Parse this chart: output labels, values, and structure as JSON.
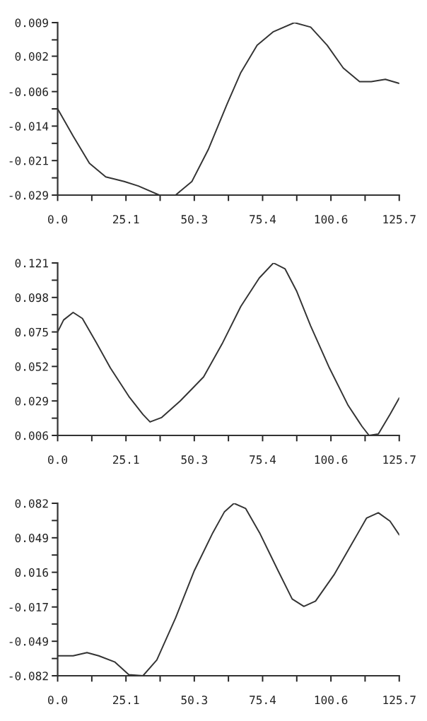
{
  "chart_data": [
    {
      "type": "line",
      "color": "#333333",
      "grid": false,
      "marker": "none",
      "line_style": "solid",
      "xlim": [
        0,
        125.7
      ],
      "ylim": [
        -0.029,
        0.009
      ],
      "xticks": [
        {
          "value": 0,
          "label": "0.0"
        },
        {
          "value": 12.57,
          "label": null
        },
        {
          "value": 25.14,
          "label": "25.1"
        },
        {
          "value": 37.71,
          "label": null
        },
        {
          "value": 50.28,
          "label": "50.3"
        },
        {
          "value": 62.85,
          "label": null
        },
        {
          "value": 75.42,
          "label": "75.4"
        },
        {
          "value": 87.99,
          "label": null
        },
        {
          "value": 100.56,
          "label": "100.6"
        },
        {
          "value": 113.13,
          "label": null
        },
        {
          "value": 125.7,
          "label": "125.7"
        }
      ],
      "yticks": [
        -0.029,
        {
          "value": -0.0252,
          "label": null
        },
        {
          "value": -0.0214,
          "label": "-0.021"
        },
        {
          "value": -0.0176,
          "label": null
        },
        {
          "value": -0.0138,
          "label": "-0.014"
        },
        {
          "value": -0.01,
          "label": null
        },
        {
          "value": -0.0062,
          "label": "-0.006"
        },
        {
          "value": -0.0024,
          "label": null
        },
        {
          "value": 0.0016,
          "label": "0.002"
        },
        {
          "value": 0.0052,
          "label": null
        },
        0.009
      ],
      "x": [
        0,
        5.7,
        11.7,
        17.7,
        24.5,
        29.7,
        37.4,
        43.4,
        49.4,
        55.4,
        62.3,
        67.4,
        73.4,
        79.4,
        87.1,
        93.1,
        99.2,
        105.1,
        111.1,
        115.4,
        120.6,
        125.7
      ],
      "values": [
        -0.01,
        -0.016,
        -0.022,
        -0.025,
        -0.026,
        -0.027,
        -0.029,
        -0.029,
        -0.026,
        -0.019,
        -0.009,
        -0.002,
        0.004,
        0.007,
        0.009,
        0.008,
        0.004,
        -0.001,
        -0.004,
        -0.004,
        -0.0035,
        -0.0044
      ]
    },
    {
      "type": "line",
      "color": "#333333",
      "grid": false,
      "marker": "none",
      "line_style": "solid",
      "xlim": [
        0,
        125.7
      ],
      "ylim": [
        0.006,
        0.121
      ],
      "xticks": [
        {
          "value": 0,
          "label": "0.0"
        },
        {
          "value": 12.57,
          "label": null
        },
        {
          "value": 25.14,
          "label": "25.1"
        },
        {
          "value": 37.71,
          "label": null
        },
        {
          "value": 50.28,
          "label": "50.3"
        },
        {
          "value": 62.85,
          "label": null
        },
        {
          "value": 75.42,
          "label": "75.4"
        },
        {
          "value": 87.99,
          "label": null
        },
        {
          "value": 100.56,
          "label": "100.6"
        },
        {
          "value": 113.13,
          "label": null
        },
        {
          "value": 125.7,
          "label": "125.7"
        }
      ],
      "yticks": [
        0.006,
        {
          "value": 0.0175,
          "label": null
        },
        0.029,
        {
          "value": 0.0405,
          "label": null
        },
        0.052,
        {
          "value": 0.0635,
          "label": null
        },
        0.075,
        {
          "value": 0.0865,
          "label": null
        },
        0.098,
        {
          "value": 0.1095,
          "label": null
        },
        0.121
      ],
      "x": [
        0,
        2.2,
        5.7,
        9.1,
        14.2,
        19.4,
        26.2,
        31.4,
        34.0,
        38.3,
        45.1,
        53.7,
        60.5,
        67.4,
        74.2,
        79.4,
        83.7,
        88.0,
        93.1,
        100.0,
        106.9,
        112.0,
        114.6,
        118.0,
        122.3,
        125.7
      ],
      "values": [
        0.075,
        0.083,
        0.088,
        0.084,
        0.068,
        0.051,
        0.032,
        0.02,
        0.015,
        0.018,
        0.029,
        0.045,
        0.067,
        0.092,
        0.111,
        0.121,
        0.117,
        0.102,
        0.079,
        0.051,
        0.026,
        0.012,
        0.006,
        0.007,
        0.02,
        0.031
      ]
    },
    {
      "type": "line",
      "color": "#333333",
      "grid": false,
      "marker": "none",
      "line_style": "solid",
      "xlim": [
        0,
        125.7
      ],
      "ylim": [
        -0.082,
        0.082
      ],
      "xticks": [
        {
          "value": 0,
          "label": "0.0"
        },
        {
          "value": 12.57,
          "label": null
        },
        {
          "value": 25.14,
          "label": "25.1"
        },
        {
          "value": 37.71,
          "label": null
        },
        {
          "value": 50.28,
          "label": "50.3"
        },
        {
          "value": 62.85,
          "label": null
        },
        {
          "value": 75.42,
          "label": "75.4"
        },
        {
          "value": 87.99,
          "label": null
        },
        {
          "value": 100.56,
          "label": "100.6"
        },
        {
          "value": 113.13,
          "label": null
        },
        {
          "value": 125.7,
          "label": "125.7"
        }
      ],
      "yticks": [
        -0.082,
        {
          "value": -0.0656,
          "label": null
        },
        {
          "value": -0.0492,
          "label": "-0.049"
        },
        {
          "value": -0.0328,
          "label": null
        },
        {
          "value": -0.0166,
          "label": "-0.017"
        },
        {
          "value": 0.0,
          "label": null
        },
        {
          "value": 0.0164,
          "label": "0.016"
        },
        {
          "value": 0.0328,
          "label": null
        },
        {
          "value": 0.0492,
          "label": "0.049"
        },
        {
          "value": 0.0656,
          "label": null
        },
        0.082
      ],
      "x": [
        0,
        5.7,
        10.8,
        15.1,
        21.1,
        26.2,
        31.4,
        36.5,
        43.4,
        50.3,
        57.1,
        61.4,
        64.9,
        69.2,
        74.3,
        81.1,
        86.3,
        90.6,
        94.9,
        101.7,
        108.6,
        113.7,
        118.0,
        122.3,
        125.7
      ],
      "values": [
        -0.063,
        -0.063,
        -0.06,
        -0.063,
        -0.069,
        -0.081,
        -0.082,
        -0.067,
        -0.027,
        0.018,
        0.054,
        0.074,
        0.082,
        0.077,
        0.054,
        0.018,
        -0.009,
        -0.016,
        -0.011,
        0.014,
        0.045,
        0.068,
        0.073,
        0.065,
        0.052
      ]
    }
  ]
}
